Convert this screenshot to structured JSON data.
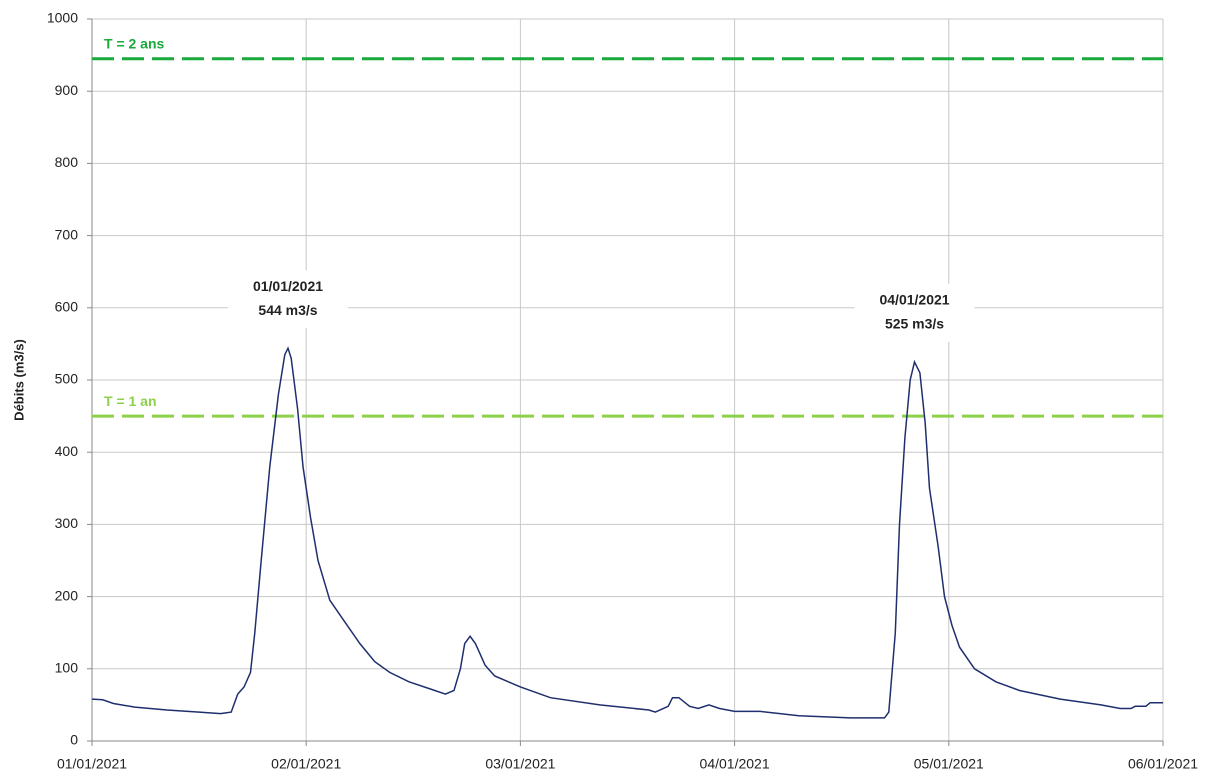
{
  "chart_data": {
    "type": "line",
    "y_label": "Débits (m3/s)",
    "ylim": [
      0,
      1000
    ],
    "yticks": [
      0,
      100,
      200,
      300,
      400,
      500,
      600,
      700,
      800,
      900,
      1000
    ],
    "xlim": [
      0,
      5
    ],
    "xticks": [
      {
        "value": 0,
        "label": "01/01/2021"
      },
      {
        "value": 1,
        "label": "02/01/2021"
      },
      {
        "value": 2,
        "label": "03/01/2021"
      },
      {
        "value": 3,
        "label": "04/01/2021"
      },
      {
        "value": 4,
        "label": "05/01/2021"
      },
      {
        "value": 5,
        "label": "06/01/2021"
      }
    ],
    "grid": true,
    "color": "#1f2f6e",
    "x": [
      0,
      0.05,
      0.1,
      0.2,
      0.35,
      0.5,
      0.6,
      0.65,
      0.68,
      0.71,
      0.74,
      0.76,
      0.79,
      0.83,
      0.87,
      0.9,
      0.915,
      0.93,
      0.96,
      0.985,
      1.02,
      1.055,
      1.11,
      1.18,
      1.25,
      1.32,
      1.39,
      1.48,
      1.58,
      1.65,
      1.69,
      1.72,
      1.74,
      1.765,
      1.79,
      1.835,
      1.88,
      2.0,
      2.14,
      2.37,
      2.6,
      2.63,
      2.69,
      2.71,
      2.74,
      2.79,
      2.83,
      2.88,
      2.93,
      3.0,
      3.12,
      3.3,
      3.54,
      3.7,
      3.72,
      3.75,
      3.77,
      3.795,
      3.82,
      3.84,
      3.865,
      3.89,
      3.91,
      3.95,
      3.98,
      4.015,
      4.05,
      4.12,
      4.22,
      4.33,
      4.52,
      4.71,
      4.8,
      4.85,
      4.87,
      4.92,
      4.94,
      5.0
    ],
    "values": [
      58,
      57,
      52,
      47,
      43,
      40,
      38,
      40,
      65,
      75,
      95,
      150,
      250,
      380,
      480,
      535,
      544,
      530,
      460,
      380,
      310,
      250,
      195,
      165,
      135,
      110,
      95,
      82,
      72,
      65,
      70,
      100,
      135,
      145,
      135,
      105,
      90,
      75,
      60,
      50,
      43,
      40,
      48,
      60,
      60,
      48,
      45,
      50,
      45,
      41,
      41,
      35,
      32,
      32,
      40,
      150,
      300,
      420,
      500,
      525,
      510,
      440,
      350,
      270,
      200,
      160,
      130,
      100,
      82,
      70,
      58,
      50,
      45,
      45,
      48,
      48,
      53,
      53
    ],
    "thresholds": [
      {
        "label": "T = 2 ans",
        "value": 945,
        "color": "#1aaa3c"
      },
      {
        "label": "T = 1 an",
        "value": 450,
        "color": "#8dd14a"
      }
    ],
    "annotations": [
      {
        "x": 0.915,
        "y": 544,
        "lines": [
          "01/01/2021",
          "544 m3/s"
        ]
      },
      {
        "x": 3.84,
        "y": 525,
        "lines": [
          "04/01/2021",
          "525 m3/s"
        ]
      }
    ]
  }
}
